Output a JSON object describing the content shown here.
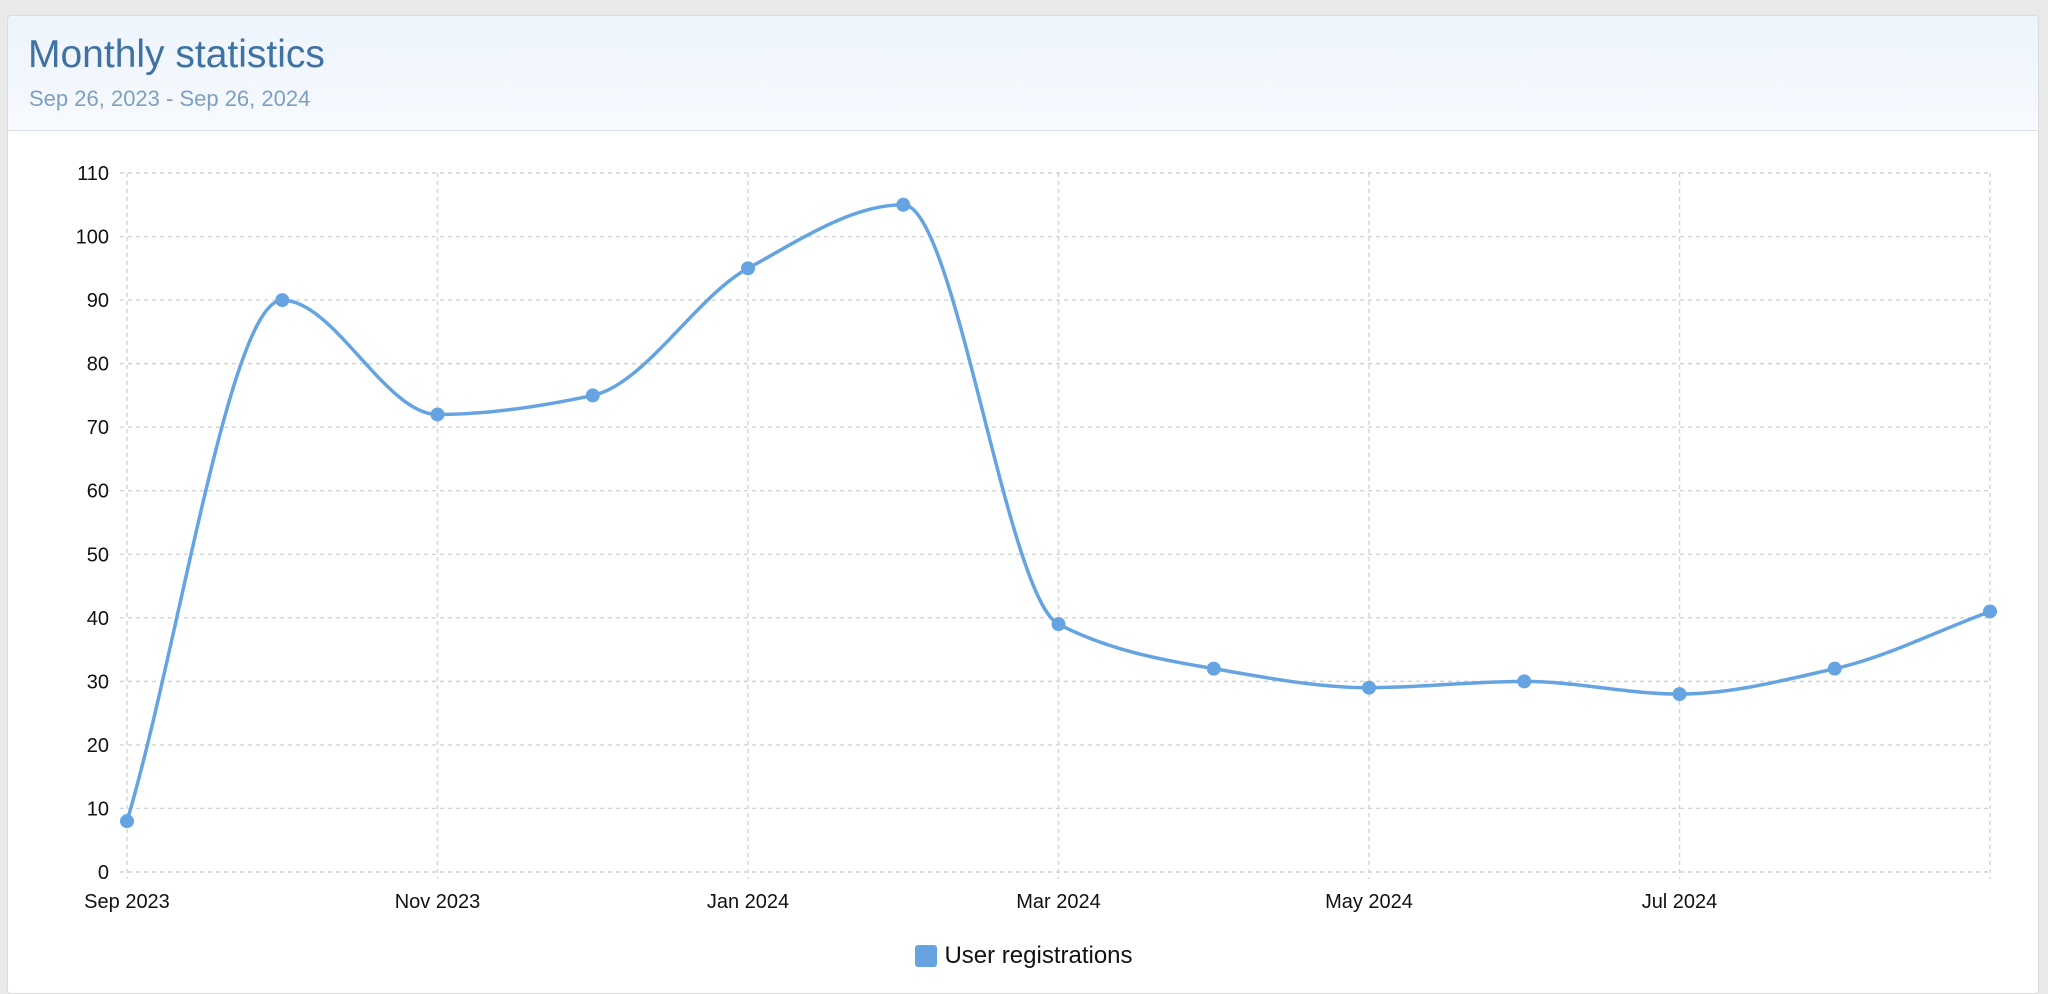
{
  "header": {
    "title": "Monthly statistics",
    "date_range": "Sep 26, 2023 - Sep 26, 2024"
  },
  "colors": {
    "series": "#65a4e0",
    "title": "#3f72a3",
    "subtitle": "#7e9fbe",
    "grid": "#d4d4d4"
  },
  "chart_data": {
    "type": "line",
    "smooth": true,
    "markers": true,
    "x": [
      "2023-09",
      "2023-10",
      "2023-11",
      "2023-12",
      "2024-01",
      "2024-02",
      "2024-03",
      "2024-04",
      "2024-05",
      "2024-06",
      "2024-07",
      "2024-08",
      "2024-09"
    ],
    "series": [
      {
        "name": "User registrations",
        "values": [
          8,
          90,
          72,
          75,
          95,
          105,
          39,
          32,
          29,
          30,
          28,
          32,
          41
        ]
      }
    ],
    "x_ticks": [
      "Sep 2023",
      "Nov 2023",
      "Jan 2024",
      "Mar 2024",
      "May 2024",
      "Jul 2024"
    ],
    "x_tick_at": [
      "2023-09",
      "2023-11",
      "2024-01",
      "2024-03",
      "2024-05",
      "2024-07"
    ],
    "y_ticks": [
      0,
      10,
      20,
      30,
      40,
      50,
      60,
      70,
      80,
      90,
      100,
      110
    ],
    "ylim": [
      0,
      110
    ],
    "grid": true,
    "grid_style": "dotted",
    "legend": "bottom-center"
  }
}
